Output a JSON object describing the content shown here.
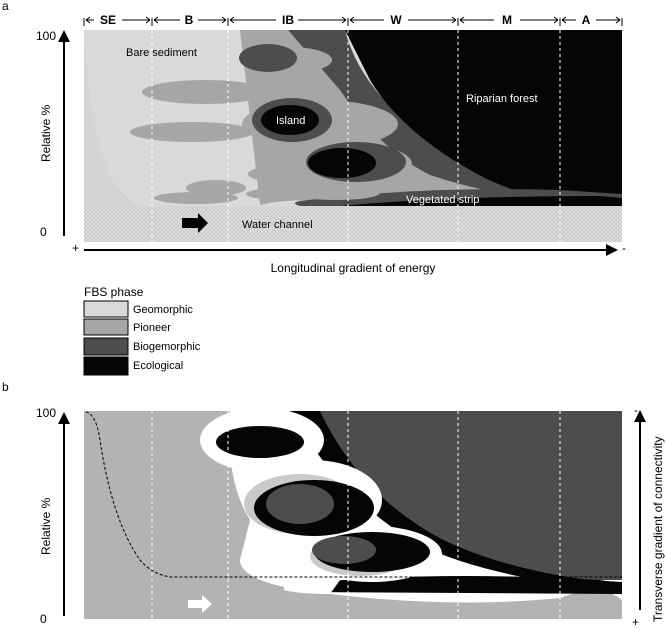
{
  "panel_a": {
    "letter": "a",
    "y_axis": {
      "label": "Relative %",
      "max": "100",
      "min": "0"
    },
    "x_axis": {
      "label": "Longitudinal gradient of energy",
      "plus": "+",
      "minus": "-"
    },
    "zones": [
      "SE",
      "B",
      "IB",
      "W",
      "M",
      "A"
    ],
    "labels": {
      "bare_sediment": "Bare sediment",
      "island": "Island",
      "riparian_forest": "Riparian forest",
      "vegetated_strip": "Vegetated strip",
      "water_channel": "Water channel"
    }
  },
  "legend": {
    "title": "FBS phase",
    "items": [
      {
        "label": "Geomorphic",
        "color": "#d9d9d9"
      },
      {
        "label": "Pioneer",
        "color": "#a6a6a6"
      },
      {
        "label": "Biogemorphic",
        "color": "#4d4d4d"
      },
      {
        "label": "Ecological",
        "color": "#050505"
      }
    ]
  },
  "panel_b": {
    "letter": "b",
    "y_axis": {
      "label": "Relative %",
      "max": "100",
      "min": "0"
    },
    "right_axis": {
      "label": "Transverse gradient of connectivity",
      "minus": "-",
      "plus": "+"
    }
  }
}
